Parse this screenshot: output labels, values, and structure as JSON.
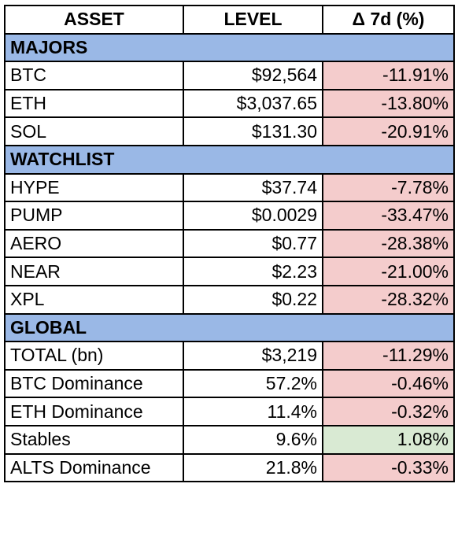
{
  "header": {
    "asset": "ASSET",
    "level": "LEVEL",
    "delta": "Δ 7d (%)"
  },
  "colors": {
    "section_bg": "#9ab8e6",
    "negative_bg": "#f4cccc",
    "positive_bg": "#d9ead3"
  },
  "sections": [
    {
      "title": "MAJORS",
      "rows": [
        {
          "asset": "BTC",
          "level": "$92,564",
          "delta": "-11.91%",
          "trend": "negative"
        },
        {
          "asset": "ETH",
          "level": "$3,037.65",
          "delta": "-13.80%",
          "trend": "negative"
        },
        {
          "asset": "SOL",
          "level": "$131.30",
          "delta": "-20.91%",
          "trend": "negative"
        }
      ]
    },
    {
      "title": "WATCHLIST",
      "rows": [
        {
          "asset": "HYPE",
          "level": "$37.74",
          "delta": "-7.78%",
          "trend": "negative"
        },
        {
          "asset": "PUMP",
          "level": "$0.0029",
          "delta": "-33.47%",
          "trend": "negative"
        },
        {
          "asset": "AERO",
          "level": "$0.77",
          "delta": "-28.38%",
          "trend": "negative"
        },
        {
          "asset": "NEAR",
          "level": "$2.23",
          "delta": "-21.00%",
          "trend": "negative"
        },
        {
          "asset": "XPL",
          "level": "$0.22",
          "delta": "-28.32%",
          "trend": "negative"
        }
      ]
    },
    {
      "title": "GLOBAL",
      "rows": [
        {
          "asset": "TOTAL (bn)",
          "level": "$3,219",
          "delta": "-11.29%",
          "trend": "negative"
        },
        {
          "asset": "BTC Dominance",
          "level": "57.2%",
          "delta": "-0.46%",
          "trend": "negative"
        },
        {
          "asset": "ETH Dominance",
          "level": "11.4%",
          "delta": "-0.32%",
          "trend": "negative"
        },
        {
          "asset": "Stables",
          "level": "9.6%",
          "delta": "1.08%",
          "trend": "positive"
        },
        {
          "asset": "ALTS Dominance",
          "level": "21.8%",
          "delta": "-0.33%",
          "trend": "negative"
        }
      ]
    }
  ]
}
